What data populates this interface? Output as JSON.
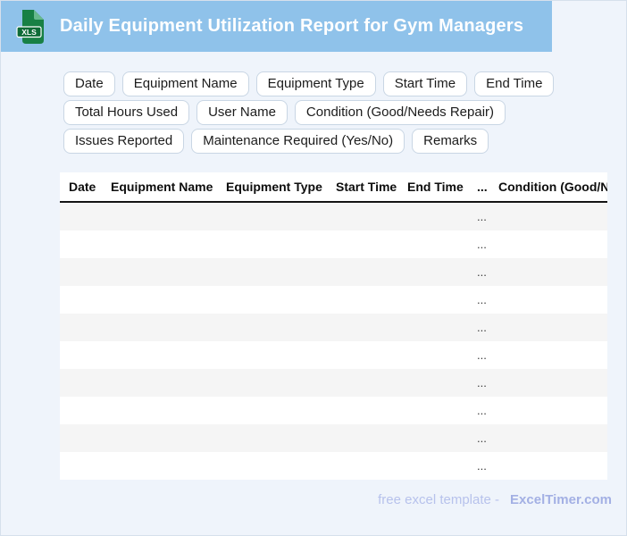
{
  "header": {
    "title": "Daily Equipment Utilization Report for Gym Managers",
    "file_badge": "XLS"
  },
  "chips": [
    "Date",
    "Equipment Name",
    "Equipment Type",
    "Start Time",
    "End Time",
    "Total Hours Used",
    "User Name",
    "Condition (Good/Needs Repair)",
    "Issues Reported",
    "Maintenance Required (Yes/No)",
    "Remarks"
  ],
  "table": {
    "columns": [
      "Date",
      "Equipment Name",
      "Equipment Type",
      "Start Time",
      "End Time",
      "...",
      "Condition (Good/Needs Repair)"
    ],
    "rows": [
      [
        "",
        "",
        "",
        "",
        "",
        "...",
        ""
      ],
      [
        "",
        "",
        "",
        "",
        "",
        "...",
        ""
      ],
      [
        "",
        "",
        "",
        "",
        "",
        "...",
        ""
      ],
      [
        "",
        "",
        "",
        "",
        "",
        "...",
        ""
      ],
      [
        "",
        "",
        "",
        "",
        "",
        "...",
        ""
      ],
      [
        "",
        "",
        "",
        "",
        "",
        "...",
        ""
      ],
      [
        "",
        "",
        "",
        "",
        "",
        "...",
        ""
      ],
      [
        "",
        "",
        "",
        "",
        "",
        "...",
        ""
      ],
      [
        "",
        "",
        "",
        "",
        "",
        "...",
        ""
      ],
      [
        "",
        "",
        "",
        "",
        "",
        "...",
        ""
      ]
    ]
  },
  "footer": {
    "prefix": "free excel template -",
    "brand": "ExcelTimer.com"
  },
  "colors": {
    "header_bg": "#8fc2ea",
    "page_bg": "#eff4fb",
    "page_border": "#d6e0ec",
    "chip_border": "#c9d6e4",
    "row_alt": "#f5f5f5",
    "footer_text": "#b7c2ec",
    "footer_brand": "#a3b0e4",
    "icon_green": "#188045",
    "icon_green_light": "#67b98e",
    "icon_green_dark": "#0e6b37"
  }
}
